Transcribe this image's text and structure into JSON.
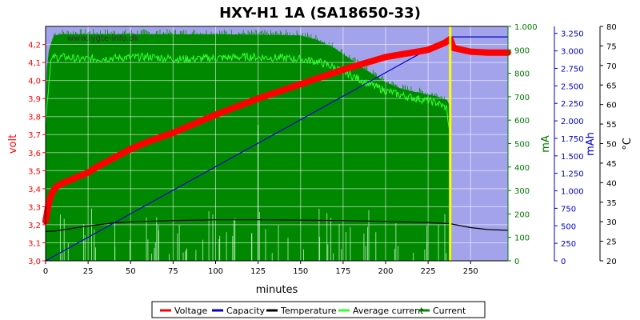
{
  "chart_data": {
    "type": "line",
    "title": "HXY-H1 1A (SA18650-33)",
    "watermark": "www.lygte-info.dk",
    "xlabel": "minutes",
    "xlim": [
      0,
      272
    ],
    "x_ticks": [
      0,
      25,
      50,
      75,
      100,
      125,
      150,
      175,
      200,
      225,
      250
    ],
    "y_axes": {
      "voltage": {
        "label": "volt",
        "range": [
          3.0,
          4.3
        ],
        "ticks": [
          "3,0",
          "3,1",
          "3,2",
          "3,3",
          "3,4",
          "3,5",
          "3,6",
          "3,7",
          "3,8",
          "3,9",
          "4,0",
          "4,1",
          "4,2"
        ],
        "color": "#ff0000"
      },
      "current": {
        "label": "mA",
        "range": [
          0,
          1000
        ],
        "ticks": [
          "0",
          "100",
          "200",
          "300",
          "400",
          "500",
          "600",
          "700",
          "800",
          "900",
          "1.000"
        ],
        "color": "#007700"
      },
      "capacity": {
        "label": "mAh",
        "range": [
          0,
          3350
        ],
        "ticks": [
          "0",
          "250",
          "500",
          "750",
          "1.000",
          "1.250",
          "1.500",
          "1.750",
          "2.000",
          "2.250",
          "2.500",
          "2.750",
          "3.000",
          "3.250"
        ],
        "color": "#0000cc"
      },
      "temperature": {
        "label": "°C",
        "range": [
          20,
          80
        ],
        "ticks": [
          "20",
          "25",
          "30",
          "35",
          "40",
          "45",
          "50",
          "55",
          "60",
          "65",
          "70",
          "75",
          "80"
        ],
        "color": "#000000"
      }
    },
    "end_marker_x": 238,
    "series": [
      {
        "name": "Voltage",
        "axis": "voltage",
        "color": "#ff0000",
        "x": [
          0,
          2,
          4,
          6,
          8,
          10,
          15,
          20,
          25,
          30,
          40,
          50,
          60,
          75,
          100,
          125,
          150,
          175,
          200,
          225,
          235,
          238,
          240,
          250,
          260,
          272
        ],
        "y": [
          3.22,
          3.33,
          3.38,
          3.41,
          3.42,
          3.43,
          3.45,
          3.47,
          3.49,
          3.52,
          3.57,
          3.62,
          3.66,
          3.71,
          3.81,
          3.9,
          3.98,
          4.06,
          4.13,
          4.17,
          4.21,
          4.23,
          4.18,
          4.16,
          4.155,
          4.155
        ]
      },
      {
        "name": "Capacity",
        "axis": "capacity",
        "color": "#0000cc",
        "x": [
          0,
          238,
          240,
          272
        ],
        "y": [
          0,
          3200,
          3200,
          3200
        ]
      },
      {
        "name": "Temperature",
        "axis": "temperature",
        "color": "#000000",
        "x": [
          0,
          5,
          10,
          20,
          30,
          40,
          50,
          75,
          100,
          125,
          150,
          175,
          200,
          225,
          238,
          250,
          260,
          272
        ],
        "y": [
          27.5,
          27.6,
          27.9,
          28.6,
          29.2,
          29.7,
          30.0,
          30.3,
          30.5,
          30.5,
          30.4,
          30.3,
          30.1,
          29.8,
          29.5,
          28.5,
          28.0,
          27.8
        ]
      },
      {
        "name": "Average current",
        "axis": "current",
        "color": "#33ff33",
        "x": [
          0,
          3,
          5,
          8,
          10,
          20,
          40,
          60,
          80,
          100,
          120,
          140,
          150,
          160,
          170,
          180,
          190,
          200,
          210,
          220,
          230,
          236,
          238
        ],
        "y": [
          600,
          850,
          870,
          865,
          870,
          860,
          865,
          870,
          860,
          865,
          870,
          865,
          860,
          850,
          825,
          790,
          755,
          725,
          705,
          690,
          675,
          650,
          520
        ]
      },
      {
        "name": "Current",
        "axis": "current",
        "color": "#008800",
        "x": [
          0,
          1,
          2,
          3,
          4,
          5,
          10,
          50,
          100,
          150,
          160,
          170,
          180,
          190,
          200,
          210,
          220,
          230,
          236,
          238,
          238.5
        ],
        "y": [
          560,
          820,
          890,
          920,
          940,
          960,
          965,
          965,
          965,
          960,
          940,
          905,
          855,
          805,
          760,
          730,
          715,
          700,
          685,
          650,
          0
        ]
      }
    ],
    "legend": [
      "Voltage",
      "Capacity",
      "Temperature",
      "Average current",
      "Current"
    ],
    "legend_position": "bottom"
  }
}
